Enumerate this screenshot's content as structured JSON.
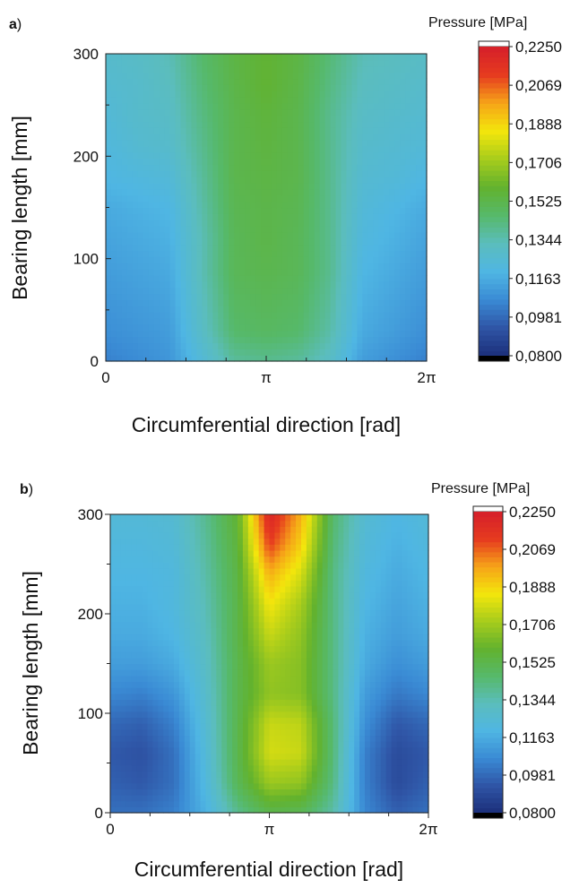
{
  "chart_data": [
    {
      "type": "heatmap",
      "panel_label": "a",
      "panel_label_suffix": ")",
      "xlabel": "Circumferential direction [rad]",
      "ylabel": "Bearing length [mm]",
      "xlim": [
        0,
        6.2832
      ],
      "ylim": [
        0,
        300
      ],
      "x_ticks": [
        {
          "value": 0,
          "label": "0"
        },
        {
          "value": 3.1416,
          "label": "π"
        },
        {
          "value": 6.2832,
          "label": "2π"
        }
      ],
      "y_ticks": [
        {
          "value": 0,
          "label": "0"
        },
        {
          "value": 100,
          "label": "100"
        },
        {
          "value": 200,
          "label": "200"
        },
        {
          "value": 300,
          "label": "300"
        }
      ],
      "colorbar": {
        "title": "Pressure [MPa]",
        "range": [
          0.08,
          0.225
        ],
        "tick_labels": [
          "0,0800",
          "0,0981",
          "0,1163",
          "0,1344",
          "0,1525",
          "0,1706",
          "0,1888",
          "0,2069",
          "0,2250"
        ]
      },
      "y_rows": [
        0,
        30,
        60,
        90,
        120,
        150,
        180,
        210,
        240,
        270,
        300
      ],
      "x_cols": [
        0,
        0.628,
        1.257,
        1.885,
        2.513,
        3.142,
        3.77,
        4.398,
        5.027,
        5.655,
        6.283
      ],
      "values": [
        [
          0.104,
          0.107,
          0.11,
          0.124,
          0.138,
          0.14,
          0.138,
          0.13,
          0.112,
          0.108,
          0.104
        ],
        [
          0.108,
          0.11,
          0.112,
          0.13,
          0.146,
          0.148,
          0.146,
          0.136,
          0.116,
          0.112,
          0.108
        ],
        [
          0.11,
          0.112,
          0.114,
          0.132,
          0.148,
          0.15,
          0.148,
          0.138,
          0.118,
          0.114,
          0.11
        ],
        [
          0.112,
          0.114,
          0.116,
          0.134,
          0.15,
          0.152,
          0.15,
          0.14,
          0.12,
          0.116,
          0.112
        ],
        [
          0.114,
          0.116,
          0.118,
          0.134,
          0.15,
          0.153,
          0.15,
          0.14,
          0.122,
          0.118,
          0.114
        ],
        [
          0.116,
          0.118,
          0.12,
          0.136,
          0.151,
          0.153,
          0.151,
          0.14,
          0.124,
          0.12,
          0.116
        ],
        [
          0.12,
          0.122,
          0.124,
          0.138,
          0.152,
          0.154,
          0.152,
          0.14,
          0.126,
          0.124,
          0.12
        ],
        [
          0.122,
          0.126,
          0.128,
          0.14,
          0.152,
          0.155,
          0.152,
          0.14,
          0.128,
          0.126,
          0.124
        ],
        [
          0.124,
          0.128,
          0.13,
          0.142,
          0.152,
          0.156,
          0.152,
          0.14,
          0.13,
          0.128,
          0.126
        ],
        [
          0.126,
          0.128,
          0.132,
          0.144,
          0.153,
          0.158,
          0.153,
          0.142,
          0.132,
          0.13,
          0.128
        ],
        [
          0.128,
          0.13,
          0.134,
          0.146,
          0.154,
          0.158,
          0.154,
          0.144,
          0.134,
          0.132,
          0.13
        ]
      ]
    },
    {
      "type": "heatmap",
      "panel_label": "b",
      "panel_label_suffix": ")",
      "xlabel": "Circumferential direction [rad]",
      "ylabel": "Bearing length [mm]",
      "xlim": [
        0,
        6.2832
      ],
      "ylim": [
        0,
        300
      ],
      "x_ticks": [
        {
          "value": 0,
          "label": "0"
        },
        {
          "value": 3.1416,
          "label": "π"
        },
        {
          "value": 6.2832,
          "label": "2π"
        }
      ],
      "y_ticks": [
        {
          "value": 0,
          "label": "0"
        },
        {
          "value": 100,
          "label": "100"
        },
        {
          "value": 200,
          "label": "200"
        },
        {
          "value": 300,
          "label": "300"
        }
      ],
      "colorbar": {
        "title": "Pressure [MPa]",
        "range": [
          0.08,
          0.225
        ],
        "tick_labels": [
          "0,0800",
          "0,0981",
          "0,1163",
          "0,1344",
          "0,1525",
          "0,1706",
          "0,1888",
          "0,2069",
          "0,2250"
        ]
      },
      "y_rows": [
        0,
        30,
        60,
        90,
        120,
        150,
        180,
        210,
        240,
        270,
        300
      ],
      "x_cols": [
        0,
        0.628,
        1.257,
        1.885,
        2.513,
        3.142,
        3.77,
        4.398,
        5.027,
        5.655,
        6.283
      ],
      "values": [
        [
          0.1,
          0.1,
          0.104,
          0.118,
          0.14,
          0.152,
          0.15,
          0.136,
          0.106,
          0.096,
          0.1
        ],
        [
          0.096,
          0.094,
          0.1,
          0.122,
          0.15,
          0.17,
          0.168,
          0.142,
          0.104,
          0.09,
          0.096
        ],
        [
          0.094,
          0.092,
          0.1,
          0.124,
          0.152,
          0.18,
          0.178,
          0.144,
          0.104,
          0.09,
          0.094
        ],
        [
          0.098,
          0.096,
          0.104,
          0.126,
          0.152,
          0.178,
          0.176,
          0.144,
          0.108,
          0.094,
          0.098
        ],
        [
          0.106,
          0.104,
          0.11,
          0.128,
          0.152,
          0.168,
          0.166,
          0.142,
          0.112,
          0.102,
          0.106
        ],
        [
          0.112,
          0.112,
          0.116,
          0.13,
          0.152,
          0.17,
          0.166,
          0.142,
          0.116,
          0.108,
          0.112
        ],
        [
          0.116,
          0.116,
          0.12,
          0.132,
          0.153,
          0.178,
          0.168,
          0.142,
          0.118,
          0.112,
          0.116
        ],
        [
          0.118,
          0.118,
          0.122,
          0.134,
          0.153,
          0.186,
          0.172,
          0.142,
          0.12,
          0.114,
          0.118
        ],
        [
          0.12,
          0.12,
          0.122,
          0.136,
          0.154,
          0.196,
          0.18,
          0.142,
          0.122,
          0.116,
          0.12
        ],
        [
          0.122,
          0.122,
          0.124,
          0.138,
          0.156,
          0.212,
          0.19,
          0.144,
          0.124,
          0.118,
          0.122
        ],
        [
          0.124,
          0.124,
          0.126,
          0.14,
          0.158,
          0.222,
          0.196,
          0.146,
          0.126,
          0.12,
          0.124
        ]
      ]
    }
  ],
  "colormap": [
    "#1b2f7a",
    "#2f55a6",
    "#3a8ad4",
    "#4fb6e3",
    "#5bbdbd",
    "#56b96a",
    "#62b22e",
    "#a7cc1c",
    "#f3e60c",
    "#f6a418",
    "#e63b1f",
    "#d61f2a"
  ],
  "colorbar_bottom_color": "#000000",
  "colorbar_top_color": "#ffffff"
}
